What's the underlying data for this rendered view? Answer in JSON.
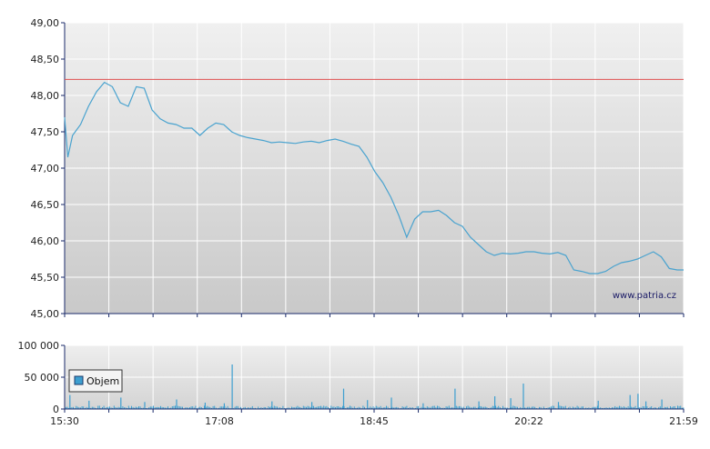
{
  "watermark": "www.patria.cz",
  "colors": {
    "line": "#4aa3cf",
    "volume": "#3d9fd0",
    "reference_line": "#e05050",
    "grid": "#ffffff",
    "axis": "#1a2a6a",
    "legend_swatch": "#3d9fd0"
  },
  "chart_data": [
    {
      "type": "line",
      "title": "",
      "xlabel": "",
      "ylabel": "",
      "ylim": [
        45.0,
        49.0
      ],
      "y_ticks": [
        "45,00",
        "45,50",
        "46,00",
        "46,50",
        "47,00",
        "47,50",
        "48,00",
        "48,50",
        "49,00"
      ],
      "x_tick_labels": [
        "15:30",
        "17:08",
        "18:45",
        "20:22",
        "21:59"
      ],
      "reference_line": 48.22,
      "grid": true,
      "series": [
        {
          "x": [
            "15:30",
            "15:32",
            "15:35",
            "15:40",
            "15:45",
            "15:50",
            "15:55",
            "16:00",
            "16:05",
            "16:10",
            "16:15",
            "16:20",
            "16:25",
            "16:30",
            "16:35",
            "16:40",
            "16:45",
            "16:50",
            "16:55",
            "17:00",
            "17:05",
            "17:10",
            "17:15",
            "17:20",
            "17:25",
            "17:30",
            "17:35",
            "17:40",
            "17:45",
            "17:50",
            "17:55",
            "18:00",
            "18:05",
            "18:10",
            "18:15",
            "18:20",
            "18:25",
            "18:30",
            "18:35",
            "18:40",
            "18:45",
            "18:50",
            "18:55",
            "19:00",
            "19:05",
            "19:10",
            "19:15",
            "19:20",
            "19:25",
            "19:30",
            "19:35",
            "19:40",
            "19:45",
            "19:50",
            "19:55",
            "20:00",
            "20:05",
            "20:10",
            "20:15",
            "20:20",
            "20:25",
            "20:30",
            "20:35",
            "20:40",
            "20:45",
            "20:50",
            "20:55",
            "21:00",
            "21:05",
            "21:10",
            "21:15",
            "21:20",
            "21:25",
            "21:30",
            "21:35",
            "21:40",
            "21:45",
            "21:50",
            "21:55",
            "21:59"
          ],
          "values": [
            47.7,
            47.15,
            47.45,
            47.6,
            47.85,
            48.05,
            48.18,
            48.12,
            47.9,
            47.85,
            48.12,
            48.1,
            47.8,
            47.68,
            47.62,
            47.6,
            47.55,
            47.55,
            47.45,
            47.55,
            47.62,
            47.6,
            47.5,
            47.45,
            47.42,
            47.4,
            47.38,
            47.35,
            47.36,
            47.35,
            47.34,
            47.36,
            47.37,
            47.35,
            47.38,
            47.4,
            47.37,
            47.33,
            47.3,
            47.15,
            46.95,
            46.8,
            46.6,
            46.35,
            46.05,
            46.3,
            46.4,
            46.4,
            46.42,
            46.35,
            46.25,
            46.2,
            46.05,
            45.95,
            45.85,
            45.8,
            45.83,
            45.82,
            45.83,
            45.85,
            45.85,
            45.83,
            45.82,
            45.84,
            45.8,
            45.6,
            45.58,
            45.55,
            45.55,
            45.58,
            45.65,
            45.7,
            45.72,
            45.75,
            45.8,
            45.85,
            45.78,
            45.62,
            45.6,
            45.6
          ]
        }
      ]
    },
    {
      "type": "bar",
      "title": "",
      "xlabel": "",
      "ylabel": "",
      "ylim": [
        0,
        100000
      ],
      "y_ticks": [
        "0",
        "50 000",
        "100 000"
      ],
      "x_tick_labels": [
        "15:30",
        "17:08",
        "18:45",
        "20:22",
        "21:59"
      ],
      "grid": true,
      "legend": {
        "position": "left",
        "entries": [
          "Objem"
        ]
      },
      "series": [
        {
          "name": "Objem",
          "base_level": 3500,
          "spikes": [
            {
              "x": "15:33",
              "value": 22000
            },
            {
              "x": "15:45",
              "value": 13000
            },
            {
              "x": "16:05",
              "value": 18000
            },
            {
              "x": "16:20",
              "value": 11000
            },
            {
              "x": "16:40",
              "value": 15000
            },
            {
              "x": "16:58",
              "value": 10000
            },
            {
              "x": "17:10",
              "value": 9000
            },
            {
              "x": "17:15",
              "value": 70000
            },
            {
              "x": "17:40",
              "value": 12000
            },
            {
              "x": "18:05",
              "value": 11000
            },
            {
              "x": "18:25",
              "value": 32000
            },
            {
              "x": "18:40",
              "value": 14000
            },
            {
              "x": "18:55",
              "value": 18000
            },
            {
              "x": "19:15",
              "value": 9000
            },
            {
              "x": "19:35",
              "value": 32000
            },
            {
              "x": "19:50",
              "value": 12000
            },
            {
              "x": "20:00",
              "value": 20000
            },
            {
              "x": "20:10",
              "value": 17000
            },
            {
              "x": "20:18",
              "value": 40000
            },
            {
              "x": "20:40",
              "value": 11000
            },
            {
              "x": "21:05",
              "value": 13000
            },
            {
              "x": "21:25",
              "value": 22000
            },
            {
              "x": "21:30",
              "value": 24000
            },
            {
              "x": "21:35",
              "value": 12000
            },
            {
              "x": "21:45",
              "value": 15000
            }
          ]
        }
      ]
    }
  ]
}
